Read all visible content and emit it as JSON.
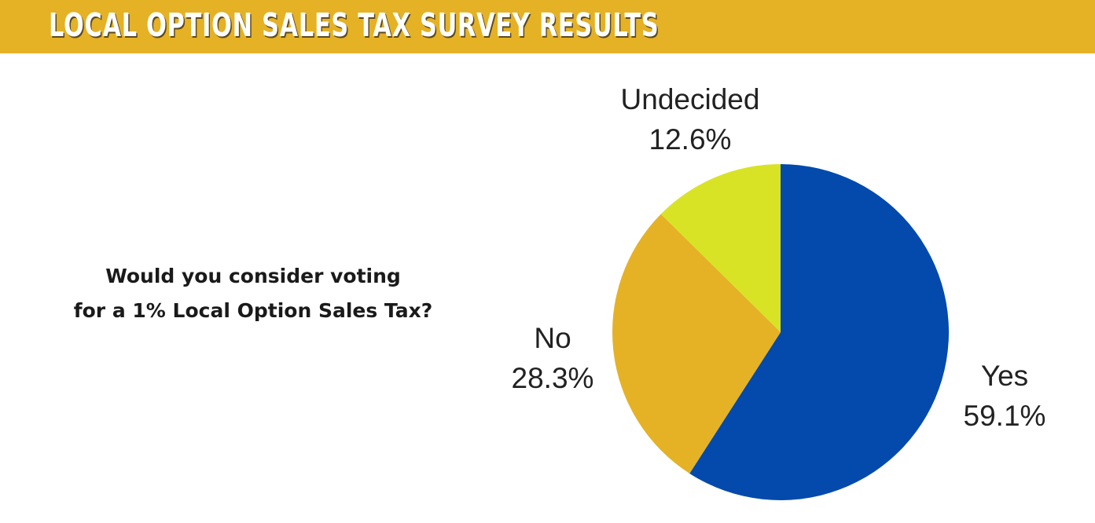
{
  "header": {
    "title": "LOCAL OPTION SALES TAX SURVEY RESULTS"
  },
  "question": {
    "line1": "Would you consider voting",
    "line2": "for a 1% Local Option Sales Tax?"
  },
  "colors": {
    "header_band": "#e5b125",
    "yes": "#034aac",
    "no": "#e5b125",
    "undecided": "#d8e326"
  },
  "chart_data": {
    "type": "pie",
    "slices": [
      {
        "label": "Yes",
        "value": 59.1,
        "value_label": "59.1%",
        "color": "#034aac"
      },
      {
        "label": "No",
        "value": 28.3,
        "value_label": "28.3%",
        "color": "#e5b125"
      },
      {
        "label": "Undecided",
        "value": 12.6,
        "value_label": "12.6%",
        "color": "#d8e326"
      }
    ],
    "start": "12 o'clock",
    "direction": "clockwise"
  }
}
